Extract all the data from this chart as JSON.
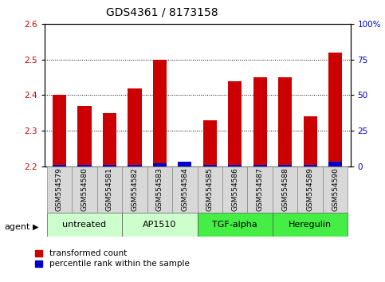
{
  "title": "GDS4361 / 8173158",
  "samples": [
    "GSM554579",
    "GSM554580",
    "GSM554581",
    "GSM554582",
    "GSM554583",
    "GSM554584",
    "GSM554585",
    "GSM554586",
    "GSM554587",
    "GSM554588",
    "GSM554589",
    "GSM554590"
  ],
  "red_values": [
    2.4,
    2.37,
    2.35,
    2.42,
    2.5,
    2.2,
    2.33,
    2.44,
    2.45,
    2.45,
    2.34,
    2.52
  ],
  "blue_values_pct": [
    1,
    1,
    1,
    1,
    2,
    3,
    1,
    1,
    1,
    1,
    1,
    3
  ],
  "ylim_left": [
    2.2,
    2.6
  ],
  "ylim_right": [
    0,
    100
  ],
  "yticks_left": [
    2.2,
    2.3,
    2.4,
    2.5,
    2.6
  ],
  "yticks_right": [
    0,
    25,
    50,
    75,
    100
  ],
  "ytick_labels_right": [
    "0",
    "25",
    "50",
    "75",
    "100%"
  ],
  "baseline": 2.2,
  "groups": [
    {
      "label": "untreated",
      "start": 0,
      "end": 3,
      "color": "#ccffcc"
    },
    {
      "label": "AP1510",
      "start": 3,
      "end": 6,
      "color": "#ccffcc"
    },
    {
      "label": "TGF-alpha",
      "start": 6,
      "end": 9,
      "color": "#44ee44"
    },
    {
      "label": "Heregulin",
      "start": 9,
      "end": 12,
      "color": "#44ee44"
    }
  ],
  "bar_width": 0.55,
  "red_color": "#cc0000",
  "blue_color": "#0000cc",
  "plot_bg_color": "#ffffff",
  "tick_color_left": "#cc0000",
  "tick_color_right": "#0000cc",
  "legend_red": "transformed count",
  "legend_blue": "percentile rank within the sample",
  "agent_label": "agent",
  "title_fontsize": 10,
  "tick_fontsize": 7.5,
  "sample_fontsize": 6.5,
  "group_fontsize": 8,
  "legend_fontsize": 7.5
}
